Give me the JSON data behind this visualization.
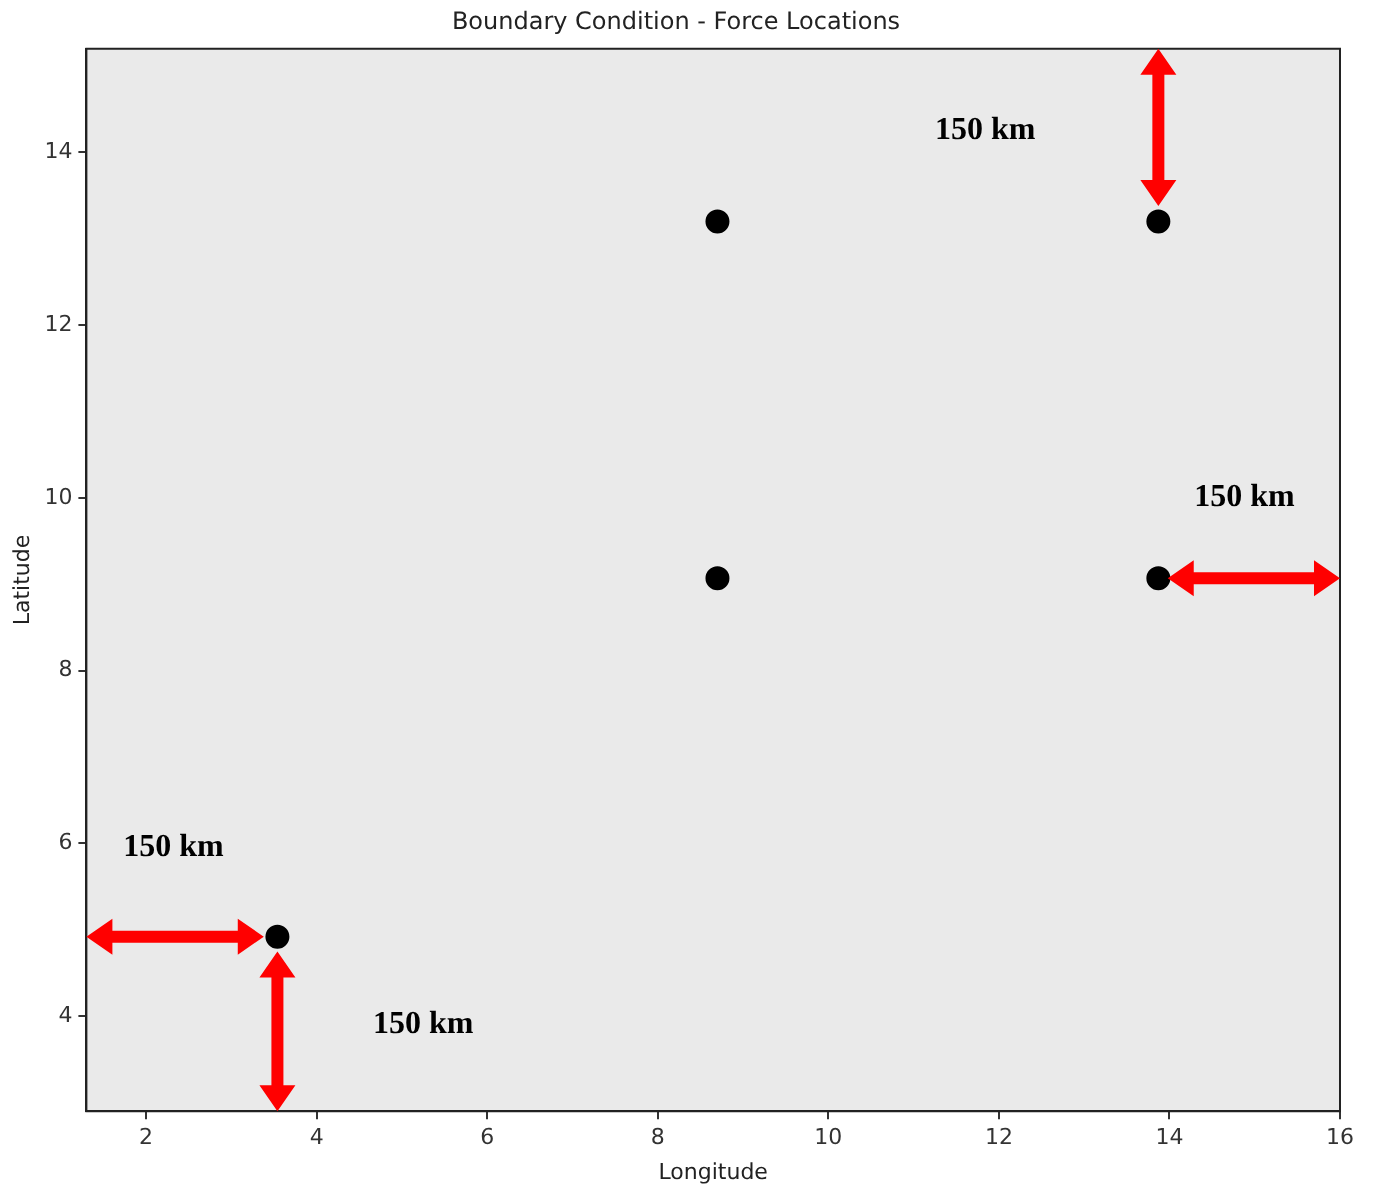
{
  "chart_data": {
    "type": "scatter",
    "title": "Boundary Condition - Force Locations",
    "xlabel": "Longitude",
    "ylabel": "Latitude",
    "series": [
      {
        "color": "#000000",
        "x": [
          3.54,
          8.7,
          8.7,
          13.87,
          13.87
        ],
        "values": [
          4.92,
          9.07,
          13.2,
          9.07,
          13.2
        ]
      }
    ],
    "xlim": [
      1.3,
      16.0
    ],
    "xticks": [
      2,
      4,
      6,
      8,
      10,
      12,
      14,
      16
    ],
    "ylim": [
      2.9,
      15.2
    ],
    "yticks": [
      4,
      6,
      8,
      10,
      12,
      14
    ],
    "grid": false,
    "legend": false,
    "marker": "circle",
    "annotations": [
      "150 km",
      "150 km",
      "150 km",
      "150 km"
    ]
  }
}
